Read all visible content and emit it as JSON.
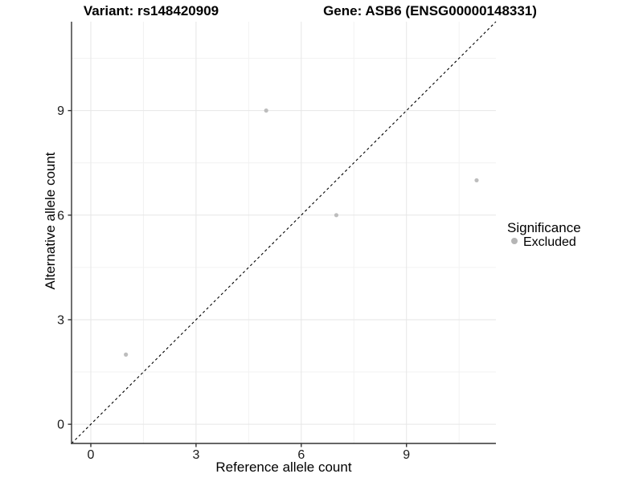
{
  "chart_data": {
    "type": "scatter",
    "titles": {
      "variant": "Variant: rs148420909",
      "gene": "Gene: ASB6 (ENSG00000148331)"
    },
    "xlabel": "Reference allele count",
    "ylabel": "Alternative allele count",
    "xlim": [
      -0.55,
      11.55
    ],
    "ylim": [
      -0.55,
      11.55
    ],
    "x_ticks": [
      0,
      3,
      6,
      9
    ],
    "y_ticks": [
      0,
      3,
      6,
      9
    ],
    "x_minor_gridlines": [
      1.5,
      4.5,
      7.5,
      10.5
    ],
    "y_minor_gridlines": [
      1.5,
      4.5,
      7.5,
      10.5
    ],
    "grid": "on",
    "identity_line": {
      "style": "dashed",
      "color": "#000000",
      "slope": 1,
      "intercept": 0
    },
    "series": [
      {
        "name": "Excluded",
        "color": "#bdbdbd",
        "points": [
          {
            "x": 1,
            "y": 2
          },
          {
            "x": 5,
            "y": 9
          },
          {
            "x": 7,
            "y": 6
          },
          {
            "x": 11,
            "y": 7
          }
        ]
      }
    ],
    "legend": {
      "title": "Significance",
      "position": "right",
      "items": [
        {
          "label": "Excluded",
          "color": "#b5b5b5"
        }
      ]
    }
  },
  "colors": {
    "background": "#ffffff",
    "grid_major": "#e6e6e6",
    "grid_minor": "#f2f2f2",
    "axis": "#333333",
    "point": "#bdbdbd",
    "text": "#000000"
  }
}
